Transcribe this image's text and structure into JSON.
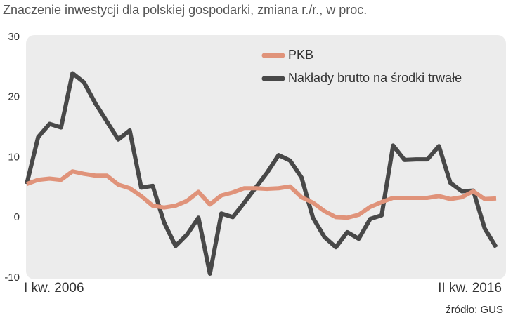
{
  "chart_data": {
    "type": "line",
    "title": "Znaczenie inwestycji dla polskiej gospodarki, zmiana r./r., w proc.",
    "source": "źródło: GUS",
    "categories": [
      "I kw. 2006",
      null,
      null,
      null,
      null,
      null,
      null,
      null,
      null,
      null,
      null,
      null,
      null,
      null,
      null,
      null,
      null,
      null,
      null,
      null,
      null,
      null,
      null,
      null,
      null,
      null,
      null,
      null,
      null,
      null,
      null,
      null,
      null,
      null,
      null,
      null,
      null,
      null,
      null,
      null,
      null,
      "II kw. 2016"
    ],
    "series": [
      {
        "name": "PKB",
        "color": "#e0937a",
        "values": [
          5.6,
          6.3,
          6.5,
          6.3,
          7.7,
          7.3,
          7.0,
          7.0,
          5.5,
          4.9,
          3.6,
          2.0,
          1.7,
          2.0,
          2.8,
          4.3,
          2.2,
          3.7,
          4.2,
          4.9,
          4.9,
          4.8,
          4.9,
          5.2,
          3.4,
          2.5,
          1.1,
          0.1,
          0.0,
          0.5,
          1.8,
          2.6,
          3.3,
          3.3,
          3.3,
          3.3,
          3.6,
          3.1,
          3.4,
          4.4,
          3.1,
          3.2
        ]
      },
      {
        "name": "Nakłady brutto na środki trwałe",
        "color": "#484848",
        "values": [
          5.6,
          13.4,
          15.6,
          15.0,
          24.0,
          22.5,
          19.0,
          16.0,
          13.0,
          14.5,
          5.0,
          5.3,
          -0.8,
          -4.7,
          -2.8,
          0.0,
          -9.3,
          0.7,
          0.1,
          2.5,
          5.0,
          7.5,
          10.4,
          9.5,
          6.7,
          0.0,
          -3.2,
          -4.9,
          -2.4,
          -3.5,
          -0.2,
          0.4,
          12.0,
          9.6,
          9.7,
          9.7,
          11.9,
          5.8,
          4.4,
          4.5,
          -1.8,
          -4.9
        ]
      }
    ],
    "ylim": [
      -10,
      30
    ],
    "yticks": [
      -10,
      0,
      10,
      20,
      30
    ],
    "grid": false
  }
}
